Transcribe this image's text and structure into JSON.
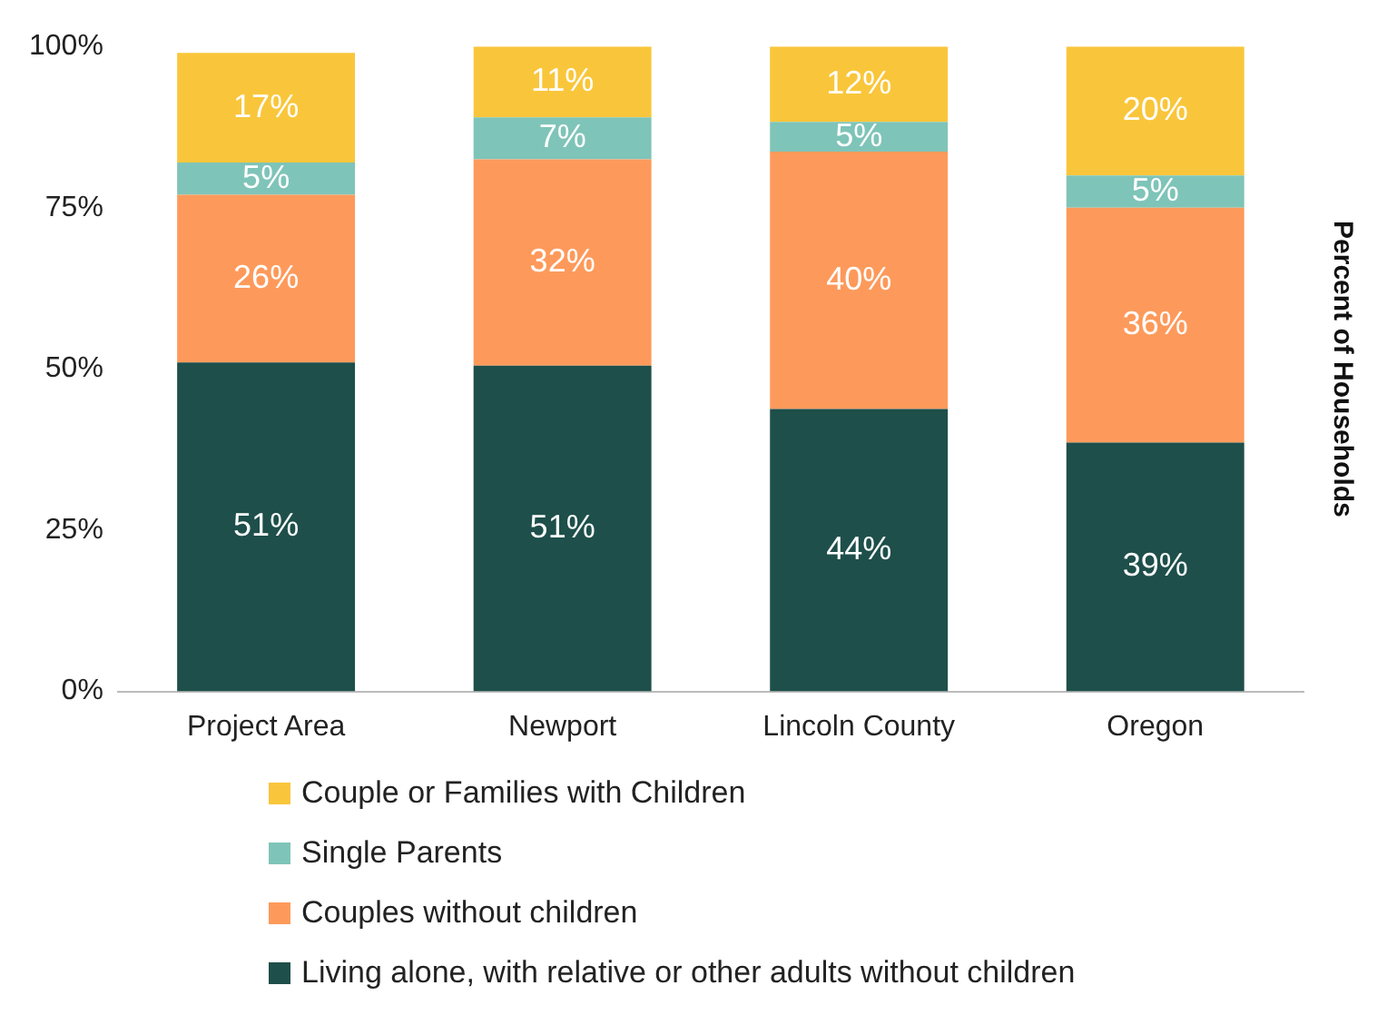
{
  "chart_data": {
    "type": "bar",
    "stacked": true,
    "ylabel": "Percent of Households",
    "categories": [
      "Project Area",
      "Newport",
      "Lincoln County",
      "Oregon"
    ],
    "series": [
      {
        "name": "Living alone, with relative or other adults without children",
        "color": "#1e4f4a",
        "values": [
          51,
          50.5,
          43.8,
          38.6
        ],
        "value_labels": [
          "51%",
          "51%",
          "44%",
          "39%"
        ]
      },
      {
        "name": "Couples without children",
        "color": "#fd9a5b",
        "values": [
          26,
          32,
          39.9,
          36.4
        ],
        "value_labels": [
          "26%",
          "32%",
          "40%",
          "36%"
        ]
      },
      {
        "name": "Single Parents",
        "color": "#7fc4b8",
        "values": [
          5,
          6.5,
          4.6,
          5
        ],
        "value_labels": [
          "5%",
          "7%",
          "5%",
          "5%"
        ]
      },
      {
        "name": "Couple or Families with Children",
        "color": "#f9c63b",
        "values": [
          17,
          11,
          11.7,
          20
        ],
        "value_labels": [
          "17%",
          "11%",
          "12%",
          "20%"
        ]
      }
    ],
    "ylim": [
      0,
      100
    ],
    "yticks": [
      {
        "value": 0,
        "label": "0%"
      },
      {
        "value": 25,
        "label": "25%"
      },
      {
        "value": 50,
        "label": "50%"
      },
      {
        "value": 75,
        "label": "75%"
      },
      {
        "value": 100,
        "label": "100%"
      }
    ],
    "grid": false,
    "legend": "bottom"
  }
}
